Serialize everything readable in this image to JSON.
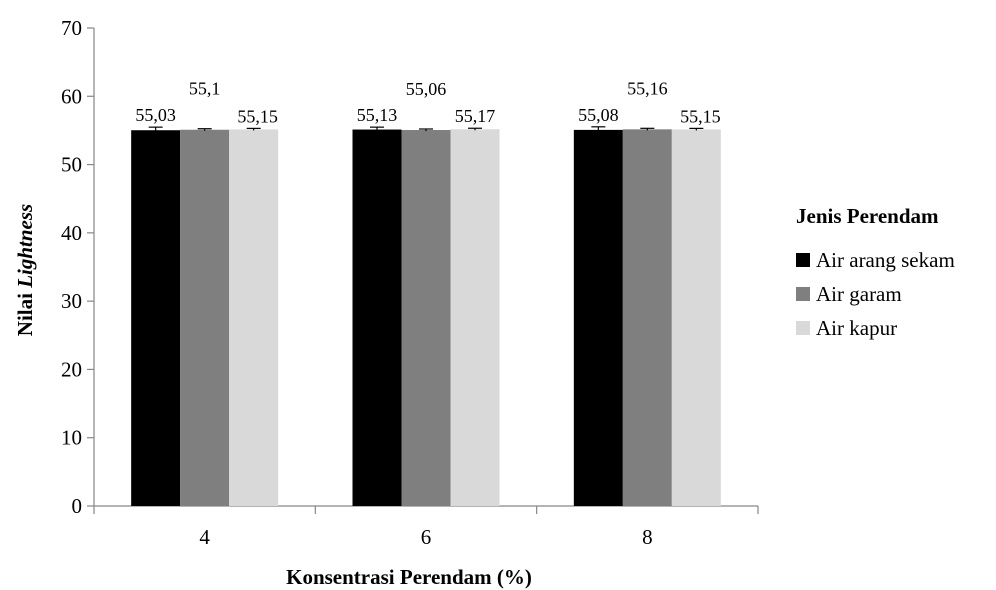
{
  "chart_data": {
    "type": "bar",
    "categories": [
      "4",
      "6",
      "8"
    ],
    "series": [
      {
        "name": "Air arang sekam",
        "values": [
          55.03,
          55.13,
          55.08
        ],
        "labels": [
          "55,03",
          "55,13",
          "55,08"
        ],
        "color": "#000000"
      },
      {
        "name": "Air garam",
        "values": [
          55.1,
          55.06,
          55.16
        ],
        "labels": [
          "55,1",
          "55,06",
          "55,16"
        ],
        "color": "#7f7f7f"
      },
      {
        "name": "Air kapur",
        "values": [
          55.15,
          55.17,
          55.15
        ],
        "labels": [
          "55,15",
          "55,17",
          "55,15"
        ],
        "color": "#d9d9d9"
      }
    ],
    "error_bars": [
      [
        0.45,
        0.35,
        0.45
      ],
      [
        0.15,
        0.15,
        0.15
      ],
      [
        0.15,
        0.15,
        0.15
      ]
    ],
    "xlabel": "Konsentrasi Perendam (%)",
    "ylabel_prefix": "Nilai ",
    "ylabel_italic": "Lightness",
    "ylim": [
      0,
      70
    ],
    "yticks": [
      0,
      10,
      20,
      30,
      40,
      50,
      60,
      70
    ],
    "ytick_labels": [
      "0",
      "10",
      "20",
      "30",
      "40",
      "50",
      "60",
      "70"
    ],
    "grid": false,
    "legend_title": "Jenis Perendam",
    "legend_position": "right"
  }
}
